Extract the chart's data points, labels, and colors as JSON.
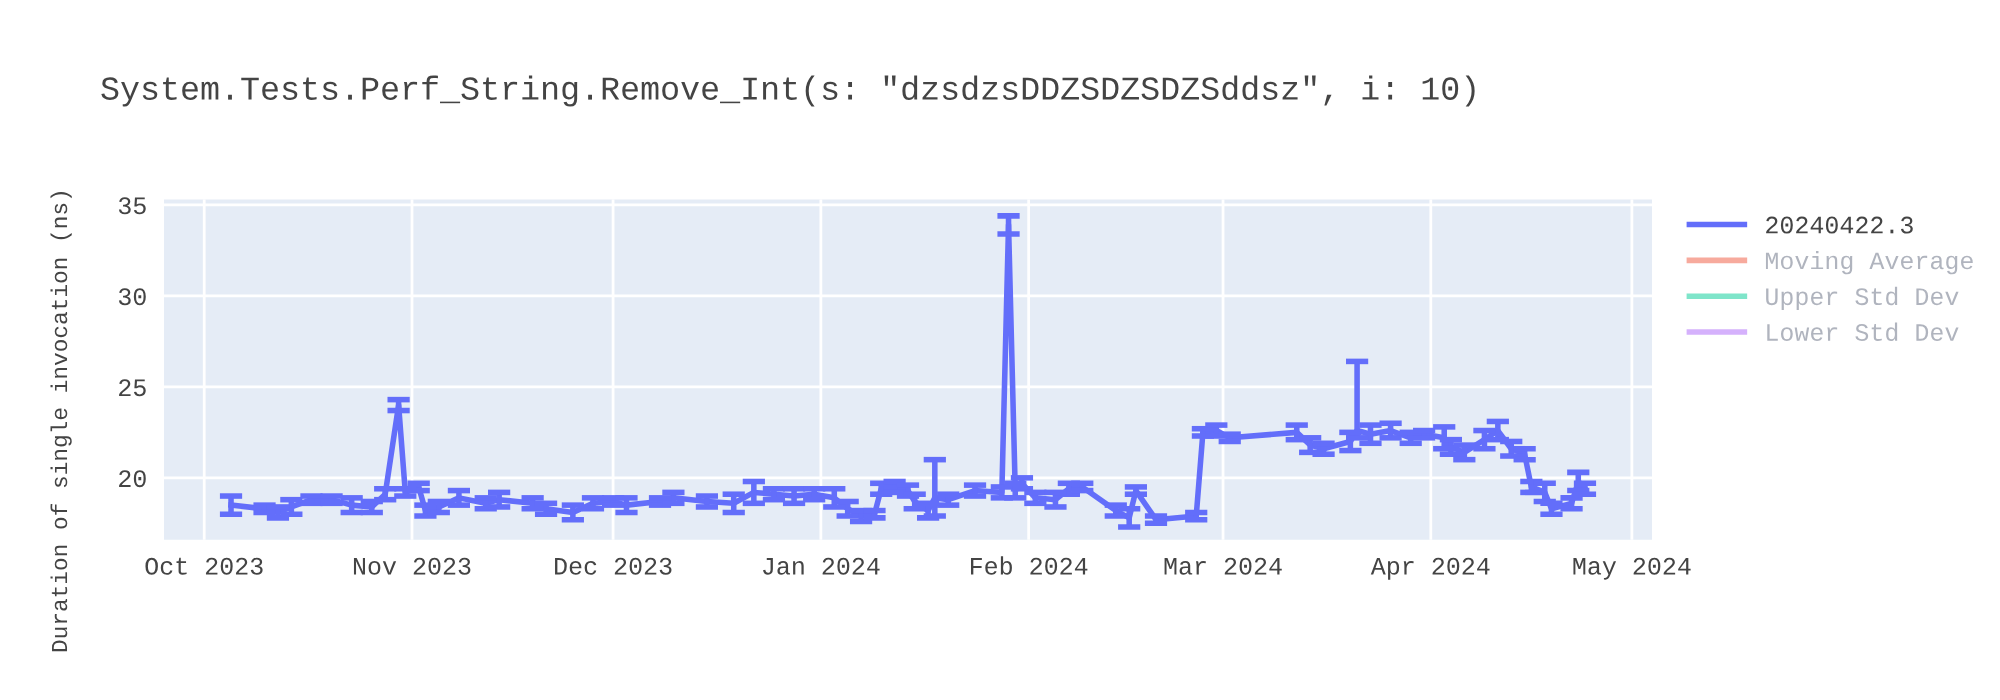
{
  "chart_data": {
    "type": "line",
    "title": "System.Tests.Perf_String.Remove_Int(s: \"dzsdzsDDZSDZSDZSddsz\", i: 10)",
    "ylabel": "Duration of single invocation (ns)",
    "xlim": [
      "2023-09-25",
      "2024-05-04"
    ],
    "xticks": [
      {
        "value": "2023-10-01",
        "label": "Oct 2023"
      },
      {
        "value": "2023-11-01",
        "label": "Nov 2023"
      },
      {
        "value": "2023-12-01",
        "label": "Dec 2023"
      },
      {
        "value": "2024-01-01",
        "label": "Jan 2024"
      },
      {
        "value": "2024-02-01",
        "label": "Feb 2024"
      },
      {
        "value": "2024-03-01",
        "label": "Mar 2024"
      },
      {
        "value": "2024-04-01",
        "label": "Apr 2024"
      },
      {
        "value": "2024-05-01",
        "label": "May 2024"
      }
    ],
    "ylim": [
      16.6,
      35.3
    ],
    "yticks": [
      20,
      25,
      30,
      35
    ],
    "grid": true,
    "legend": "top right",
    "marker": "none",
    "line_style": "solid",
    "series": [
      {
        "name": "20240422.3",
        "color": "#636efa",
        "x": [
          "2023-10-05",
          "2023-10-10",
          "2023-10-12",
          "2023-10-14",
          "2023-10-17",
          "2023-10-20",
          "2023-10-23",
          "2023-10-26",
          "2023-10-28",
          "2023-10-30",
          "2023-10-31",
          "2023-11-02",
          "2023-11-03",
          "2023-11-05",
          "2023-11-08",
          "2023-11-12",
          "2023-11-14",
          "2023-11-19",
          "2023-11-21",
          "2023-11-25",
          "2023-11-28",
          "2023-12-01",
          "2023-12-03",
          "2023-12-08",
          "2023-12-10",
          "2023-12-15",
          "2023-12-19",
          "2023-12-22",
          "2023-12-25",
          "2023-12-28",
          "2023-12-31",
          "2024-01-03",
          "2024-01-05",
          "2024-01-07",
          "2024-01-09",
          "2024-01-10",
          "2024-01-12",
          "2024-01-14",
          "2024-01-15",
          "2024-01-17",
          "2024-01-18",
          "2024-01-20",
          "2024-01-24",
          "2024-01-28",
          "2024-01-29",
          "2024-01-30",
          "2024-01-31",
          "2024-02-02",
          "2024-02-05",
          "2024-02-07",
          "2024-02-09",
          "2024-02-14",
          "2024-02-16",
          "2024-02-17",
          "2024-02-20",
          "2024-02-26",
          "2024-02-27",
          "2024-02-29",
          "2024-03-02",
          "2024-03-12",
          "2024-03-14",
          "2024-03-16",
          "2024-03-20",
          "2024-03-21",
          "2024-03-23",
          "2024-03-26",
          "2024-03-29",
          "2024-03-31",
          "2024-04-03",
          "2024-04-04",
          "2024-04-06",
          "2024-04-09",
          "2024-04-11",
          "2024-04-13",
          "2024-04-15",
          "2024-04-16",
          "2024-04-18",
          "2024-04-19",
          "2024-04-22",
          "2024-04-23",
          "2024-04-24"
        ],
        "values": [
          18.5,
          18.3,
          18.1,
          18.4,
          18.8,
          18.8,
          18.5,
          18.4,
          19.1,
          24.0,
          19.2,
          19.5,
          18.2,
          18.4,
          18.9,
          18.6,
          18.8,
          18.6,
          18.3,
          18.1,
          18.6,
          18.7,
          18.5,
          18.7,
          18.9,
          18.7,
          18.6,
          19.2,
          19.1,
          19.0,
          19.1,
          18.9,
          18.3,
          17.9,
          18.0,
          19.4,
          19.5,
          19.3,
          18.7,
          18.2,
          18.9,
          18.8,
          19.3,
          19.2,
          33.9,
          19.3,
          19.7,
          18.9,
          18.8,
          19.4,
          19.5,
          18.2,
          17.8,
          19.3,
          17.7,
          17.9,
          22.5,
          22.6,
          22.2,
          22.5,
          21.8,
          21.6,
          22.0,
          22.6,
          22.4,
          22.6,
          22.2,
          22.4,
          22.2,
          21.7,
          21.4,
          22.1,
          22.6,
          21.6,
          21.3,
          19.5,
          19.2,
          18.3,
          18.6,
          19.8,
          19.4
        ],
        "errors": [
          0.5,
          0.2,
          0.3,
          0.4,
          0.2,
          0.2,
          0.4,
          0.3,
          0.3,
          0.3,
          0.2,
          0.2,
          0.3,
          0.3,
          0.4,
          0.3,
          0.4,
          0.3,
          0.3,
          0.4,
          0.3,
          0.2,
          0.4,
          0.2,
          0.3,
          0.3,
          0.5,
          0.6,
          0.3,
          0.4,
          0.3,
          0.5,
          0.4,
          0.3,
          0.2,
          0.3,
          0.3,
          0.3,
          0.4,
          0.4,
          [
            17.9,
            21.0
          ],
          0.3,
          0.3,
          0.3,
          0.5,
          0.4,
          0.3,
          0.3,
          0.4,
          0.3,
          0.2,
          0.3,
          0.5,
          0.2,
          0.2,
          0.2,
          0.2,
          0.3,
          0.2,
          0.4,
          0.4,
          0.3,
          0.5,
          [
            22.2,
            26.4
          ],
          0.5,
          0.4,
          0.3,
          0.2,
          0.6,
          0.4,
          0.4,
          0.5,
          0.5,
          0.4,
          0.3,
          0.3,
          0.5,
          0.3,
          0.3,
          0.5,
          0.3
        ]
      },
      {
        "name": "Moving Average",
        "color": "#ef553b"
      },
      {
        "name": "Upper Std Dev",
        "color": "#00cc96"
      },
      {
        "name": "Lower Std Dev",
        "color": "#ab63fa"
      }
    ]
  }
}
